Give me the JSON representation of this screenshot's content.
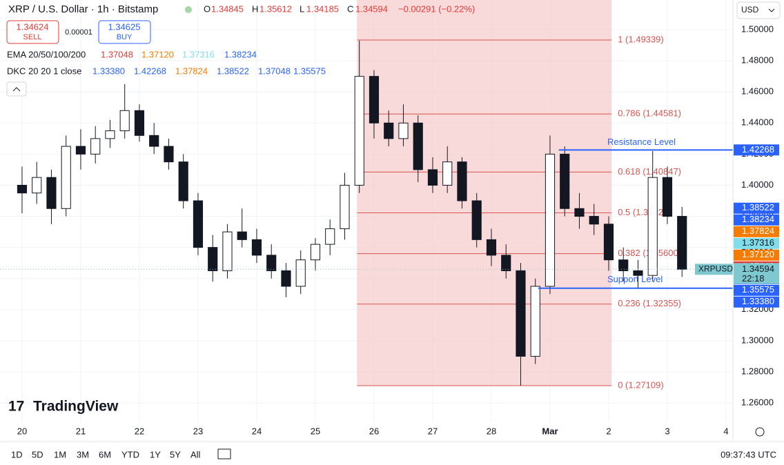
{
  "header": {
    "symbol": "XRP / U.S. Dollar · 1h · Bitstamp",
    "o_label": "O",
    "o": "1.34845",
    "h_label": "H",
    "h": "1.35612",
    "l_label": "L",
    "l": "1.34185",
    "c_label": "C",
    "c": "1.34594",
    "change": "−0.00291 (−0.22%)",
    "sell_price": "1.34624",
    "sell": "SELL",
    "spread": "0.00001",
    "buy_price": "1.34625",
    "buy": "BUY",
    "ema_name": "EMA 20/50/100/200",
    "ema_values": [
      "1.37048",
      "1.37120",
      "1.37316",
      "1.38234"
    ],
    "dkc_name": "DKC 20 20 1 close",
    "dkc_values": [
      "1.33380",
      "1.42268",
      "1.37824",
      "1.38522",
      "1.37048",
      "1.35575"
    ],
    "currency": "USD"
  },
  "chart_data": {
    "type": "candlestick",
    "x": [
      0,
      0.25,
      0.5,
      0.75,
      1,
      1.25,
      1.5,
      1.75,
      2,
      2.25,
      2.5,
      2.75,
      3,
      3.25,
      3.5,
      3.75,
      4,
      4.25,
      4.5,
      4.75,
      5,
      5.25,
      5.5,
      5.75,
      6,
      6.25,
      6.5,
      6.75,
      7,
      7.25,
      7.5,
      7.75,
      8,
      8.25,
      8.5,
      8.75,
      9,
      9.25,
      9.5,
      9.75,
      10,
      10.25,
      10.5,
      10.75,
      11,
      11.25
    ],
    "open": [
      1.4,
      1.395,
      1.405,
      1.385,
      1.425,
      1.42,
      1.43,
      1.435,
      1.448,
      1.432,
      1.425,
      1.415,
      1.39,
      1.36,
      1.345,
      1.37,
      1.365,
      1.355,
      1.345,
      1.335,
      1.352,
      1.362,
      1.372,
      1.4,
      1.47,
      1.44,
      1.43,
      1.44,
      1.41,
      1.4,
      1.415,
      1.39,
      1.365,
      1.355,
      1.345,
      1.29,
      1.335,
      1.42,
      1.385,
      1.38,
      1.375,
      1.352,
      1.345,
      1.342,
      1.405,
      1.38
    ],
    "high": [
      1.412,
      1.415,
      1.41,
      1.432,
      1.436,
      1.438,
      1.442,
      1.465,
      1.452,
      1.44,
      1.43,
      1.42,
      1.395,
      1.368,
      1.375,
      1.385,
      1.372,
      1.362,
      1.35,
      1.358,
      1.366,
      1.378,
      1.408,
      1.493,
      1.474,
      1.448,
      1.452,
      1.445,
      1.418,
      1.425,
      1.418,
      1.395,
      1.372,
      1.362,
      1.35,
      1.34,
      1.432,
      1.425,
      1.395,
      1.388,
      1.38,
      1.36,
      1.352,
      1.422,
      1.412,
      1.386
    ],
    "low": [
      1.382,
      1.388,
      1.375,
      1.38,
      1.41,
      1.414,
      1.424,
      1.43,
      1.428,
      1.42,
      1.41,
      1.385,
      1.355,
      1.338,
      1.34,
      1.36,
      1.35,
      1.34,
      1.328,
      1.33,
      1.345,
      1.355,
      1.365,
      1.395,
      1.43,
      1.425,
      1.425,
      1.402,
      1.395,
      1.395,
      1.385,
      1.36,
      1.348,
      1.34,
      1.2711,
      1.285,
      1.33,
      1.38,
      1.372,
      1.368,
      1.345,
      1.338,
      1.334,
      1.338,
      1.375,
      1.341
    ],
    "close": [
      1.395,
      1.405,
      1.385,
      1.425,
      1.42,
      1.43,
      1.435,
      1.448,
      1.432,
      1.425,
      1.415,
      1.39,
      1.36,
      1.345,
      1.37,
      1.365,
      1.355,
      1.345,
      1.335,
      1.352,
      1.362,
      1.372,
      1.4,
      1.47,
      1.44,
      1.43,
      1.44,
      1.41,
      1.4,
      1.415,
      1.39,
      1.365,
      1.355,
      1.345,
      1.29,
      1.335,
      1.42,
      1.385,
      1.38,
      1.375,
      1.352,
      1.345,
      1.342,
      1.405,
      1.38,
      1.34594
    ],
    "up_color": "#ffffff",
    "down_color": "#131722",
    "xlim": [
      -0.376,
      12.118
    ],
    "ylim": [
      1.2476,
      1.5191
    ],
    "xticks": [
      {
        "value": 0,
        "label": "20"
      },
      {
        "value": 1,
        "label": "21"
      },
      {
        "value": 2,
        "label": "22"
      },
      {
        "value": 3,
        "label": "23"
      },
      {
        "value": 4,
        "label": "24"
      },
      {
        "value": 5,
        "label": "25"
      },
      {
        "value": 6,
        "label": "26"
      },
      {
        "value": 7,
        "label": "27"
      },
      {
        "value": 8,
        "label": "28"
      },
      {
        "value": 9,
        "label": "Mar"
      },
      {
        "value": 10,
        "label": "2"
      },
      {
        "value": 11,
        "label": "3"
      },
      {
        "value": 12,
        "label": "4"
      }
    ],
    "yticks": [
      {
        "value": 1.26,
        "label": "1.26000"
      },
      {
        "value": 1.28,
        "label": "1.28000"
      },
      {
        "value": 1.3,
        "label": "1.30000"
      },
      {
        "value": 1.32,
        "label": "1.32000"
      },
      {
        "value": 1.34,
        "label": "1.34000"
      },
      {
        "value": 1.36,
        "label": "1.36000"
      },
      {
        "value": 1.38,
        "label": "1.38000"
      },
      {
        "value": 1.4,
        "label": "1.40000"
      },
      {
        "value": 1.42,
        "label": "1.42000"
      },
      {
        "value": 1.44,
        "label": "1.44000"
      },
      {
        "value": 1.46,
        "label": "1.46000"
      },
      {
        "value": 1.48,
        "label": "1.48000"
      },
      {
        "value": 1.5,
        "label": "1.50000"
      }
    ],
    "fib_x": [
      5.71,
      10.05
    ],
    "fib_levels": [
      {
        "value": 1.49339,
        "label": "1 (1.49339)"
      },
      {
        "value": 1.44581,
        "label": "0.786 (1.44581)"
      },
      {
        "value": 1.40847,
        "label": "0.618 (1.40847)"
      },
      {
        "value": 1.38224,
        "label": "0.5 (1.38224)"
      },
      {
        "value": 1.356,
        "label": "0.382 (1.35600)"
      },
      {
        "value": 1.32355,
        "label": "0.236 (1.32355)"
      },
      {
        "value": 1.27109,
        "label": "0 (1.27109)"
      }
    ],
    "levels": [
      {
        "name": "Resistance Level",
        "value": 1.42268,
        "start": 9.15
      },
      {
        "name": "Support Level",
        "value": 1.3338,
        "start": 8.8
      }
    ],
    "price_tags": [
      {
        "value": 1.42268,
        "label": "1.42268",
        "color": "#2962ff"
      },
      {
        "value": 1.38522,
        "label": "1.38522",
        "color": "#2962ff"
      },
      {
        "value": 1.38234,
        "label": "1.38234",
        "color": "#2962ff"
      },
      {
        "value": 1.37824,
        "label": "1.37824",
        "color": "#f57c00"
      },
      {
        "value": 1.37316,
        "label": "1.37316",
        "color": "#80deea"
      },
      {
        "value": 1.3712,
        "label": "1.37120",
        "color": "#f57c00"
      },
      {
        "value": 1.37048,
        "label": "1.37048",
        "color": "#e53935"
      },
      {
        "value": 1.37048,
        "label": "1.37048",
        "color": "#2962ff"
      },
      {
        "value": 1.35575,
        "label": "1.35575",
        "color": "#2962ff"
      },
      {
        "value": 1.3338,
        "label": "1.33380",
        "color": "#2962ff"
      }
    ],
    "last": {
      "symbol": "XRPUSD",
      "value": 1.34594,
      "label": "1.34594",
      "countdown": "22:18",
      "color": "#7ec8cf"
    }
  },
  "toolbar": {
    "ranges": [
      "1D",
      "5D",
      "1M",
      "3M",
      "6M",
      "YTD",
      "1Y",
      "5Y",
      "All"
    ],
    "time": "09:37:43 UTC",
    "brand": "TradingView"
  }
}
